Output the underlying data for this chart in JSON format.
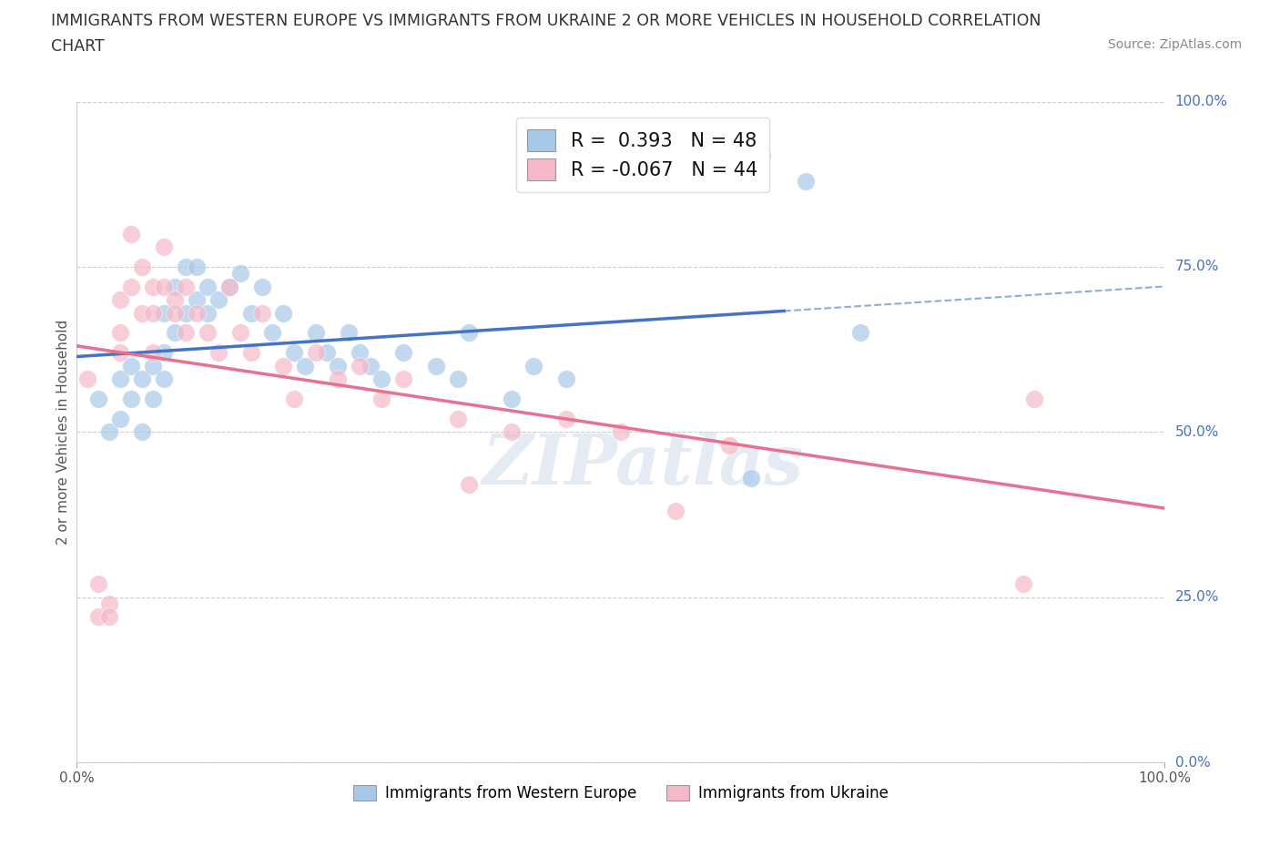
{
  "title_line1": "IMMIGRANTS FROM WESTERN EUROPE VS IMMIGRANTS FROM UKRAINE 2 OR MORE VEHICLES IN HOUSEHOLD CORRELATION",
  "title_line2": "CHART",
  "source_text": "Source: ZipAtlas.com",
  "ylabel": "2 or more Vehicles in Household",
  "legend_label1": "Immigrants from Western Europe",
  "legend_label2": "Immigrants from Ukraine",
  "R1": 0.393,
  "N1": 48,
  "R2": -0.067,
  "N2": 44,
  "xlim": [
    0.0,
    1.0
  ],
  "ylim": [
    0.0,
    1.0
  ],
  "ytick_labels": [
    "0.0%",
    "25.0%",
    "50.0%",
    "75.0%",
    "100.0%"
  ],
  "ytick_positions": [
    0.0,
    0.25,
    0.5,
    0.75,
    1.0
  ],
  "color_blue": "#a8c8e8",
  "color_pink": "#f4b8c8",
  "line_blue": "#4472c4",
  "line_pink": "#e87090",
  "background_color": "#ffffff",
  "watermark": "ZIPatlas",
  "blue_x": [
    0.02,
    0.03,
    0.04,
    0.04,
    0.05,
    0.05,
    0.06,
    0.06,
    0.07,
    0.07,
    0.08,
    0.08,
    0.08,
    0.09,
    0.09,
    0.1,
    0.1,
    0.11,
    0.11,
    0.12,
    0.12,
    0.13,
    0.14,
    0.15,
    0.16,
    0.17,
    0.18,
    0.19,
    0.2,
    0.21,
    0.22,
    0.23,
    0.24,
    0.25,
    0.26,
    0.27,
    0.28,
    0.3,
    0.33,
    0.35,
    0.36,
    0.4,
    0.42,
    0.45,
    0.62,
    0.63,
    0.67,
    0.72
  ],
  "blue_y": [
    0.55,
    0.5,
    0.52,
    0.58,
    0.55,
    0.6,
    0.5,
    0.58,
    0.55,
    0.6,
    0.62,
    0.58,
    0.68,
    0.65,
    0.72,
    0.68,
    0.75,
    0.7,
    0.75,
    0.68,
    0.72,
    0.7,
    0.72,
    0.74,
    0.68,
    0.72,
    0.65,
    0.68,
    0.62,
    0.6,
    0.65,
    0.62,
    0.6,
    0.65,
    0.62,
    0.6,
    0.58,
    0.62,
    0.6,
    0.58,
    0.65,
    0.55,
    0.6,
    0.58,
    0.43,
    0.92,
    0.88,
    0.65
  ],
  "pink_x": [
    0.01,
    0.02,
    0.02,
    0.03,
    0.03,
    0.04,
    0.04,
    0.04,
    0.05,
    0.05,
    0.06,
    0.06,
    0.07,
    0.07,
    0.07,
    0.08,
    0.08,
    0.09,
    0.09,
    0.1,
    0.1,
    0.11,
    0.12,
    0.13,
    0.14,
    0.15,
    0.16,
    0.17,
    0.19,
    0.2,
    0.22,
    0.24,
    0.26,
    0.28,
    0.3,
    0.35,
    0.36,
    0.4,
    0.45,
    0.5,
    0.55,
    0.6,
    0.87,
    0.88
  ],
  "pink_y": [
    0.58,
    0.22,
    0.27,
    0.24,
    0.22,
    0.62,
    0.65,
    0.7,
    0.72,
    0.8,
    0.68,
    0.75,
    0.62,
    0.68,
    0.72,
    0.78,
    0.72,
    0.7,
    0.68,
    0.72,
    0.65,
    0.68,
    0.65,
    0.62,
    0.72,
    0.65,
    0.62,
    0.68,
    0.6,
    0.55,
    0.62,
    0.58,
    0.6,
    0.55,
    0.58,
    0.52,
    0.42,
    0.5,
    0.52,
    0.5,
    0.38,
    0.48,
    0.27,
    0.55
  ]
}
